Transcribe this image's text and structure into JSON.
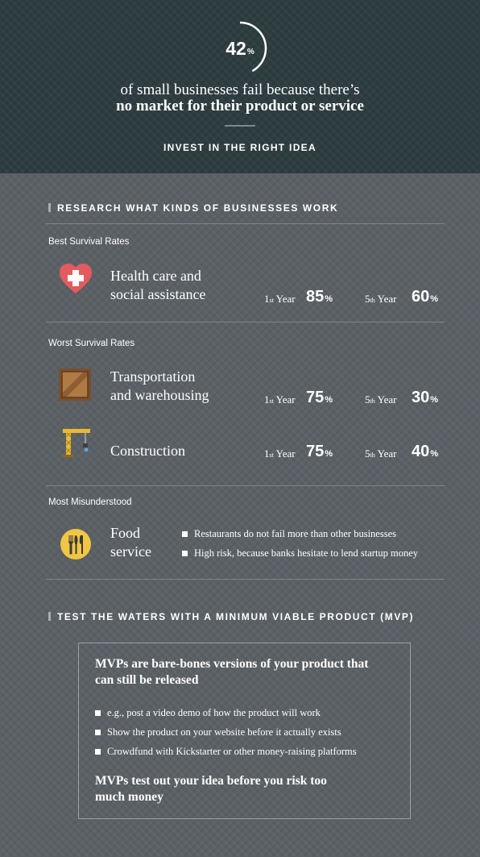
{
  "hero": {
    "stat_value": "42",
    "stat_unit": "%",
    "line1": "of small businesses fail because there’s",
    "line2": "no market for their product or service",
    "subtitle": "INVEST IN THE RIGHT IDEA"
  },
  "research": {
    "heading": "RESEARCH WHAT KINDS OF BUSINESSES WORK",
    "best_label": "Best Survival Rates",
    "worst_label": "Worst Survival Rates",
    "misunderstood_label": "Most Misunderstood",
    "year_labels": {
      "first_num": "1",
      "first_suffix": "st",
      "fifth_num": "5",
      "fifth_suffix": "th",
      "year": "Year"
    },
    "businesses": [
      {
        "name_line1": "Health care and",
        "name_line2": "social assistance",
        "icon": "heart-cross-icon",
        "first_year": "85",
        "fifth_year": "60"
      },
      {
        "name_line1": "Transportation",
        "name_line2": "and warehousing",
        "icon": "crate-icon",
        "first_year": "75",
        "fifth_year": "30"
      },
      {
        "name_line1": "Construction",
        "name_line2": "",
        "icon": "crane-icon",
        "first_year": "75",
        "fifth_year": "40"
      }
    ],
    "pct_unit": "%",
    "food": {
      "name_line1": "Food",
      "name_line2": "service",
      "icon": "utensils-icon",
      "bullets": [
        "Restaurants do not fail more than other businesses",
        "High risk, because banks hesitate to lend startup money"
      ]
    }
  },
  "mvp": {
    "heading": "TEST THE WATERS WITH A MINIMUM VIABLE PRODUCT (MVP)",
    "intro_line1": "MVPs are bare-bones versions of your product that",
    "intro_line2": "can still be released",
    "bullets": [
      "e.g., post a video demo of how the product will work",
      "Show the product on your website before it actually exists",
      "Crowdfund with Kickstarter or other money-raising platforms"
    ],
    "outro_line1": "MVPs test out your idea before you risk too",
    "outro_line2": "much money"
  },
  "colors": {
    "hero_bg": "#2e3d40",
    "body_bg": "#5b6065",
    "heart": "#e35b5f",
    "crate": "#9b6a3d",
    "crane": "#e9b936",
    "food": "#f1c645"
  }
}
